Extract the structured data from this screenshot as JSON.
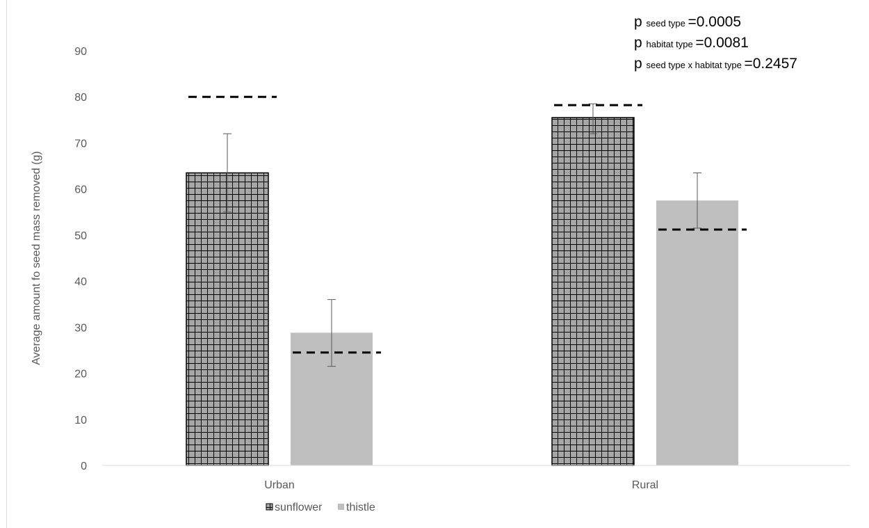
{
  "chart_data": {
    "type": "bar",
    "title": "",
    "xlabel": "",
    "ylabel": "Average  amount fo seed mass removed  (g)",
    "ylim": [
      0,
      90
    ],
    "yticks": [
      "0",
      "10",
      "20",
      "30",
      "40",
      "50",
      "60",
      "70",
      "80",
      "90"
    ],
    "categories": [
      "Urban",
      "Rural"
    ],
    "series": [
      {
        "name": "sunflower",
        "pattern": "grid-hatch",
        "fill_color": "#a6a6a6",
        "line_color": "#000000",
        "values": [
          63.5,
          75.5
        ],
        "error_low": [
          55.0,
          72.0
        ],
        "error_high": [
          72.0,
          78.5
        ],
        "reference_lines": [
          80.0,
          78.2
        ]
      },
      {
        "name": "thistle",
        "pattern": "solid",
        "fill_color": "#bfbfbf",
        "values": [
          28.8,
          57.5
        ],
        "error_low": [
          21.5,
          51.5
        ],
        "error_high": [
          36.0,
          63.5
        ],
        "reference_lines": [
          24.5,
          51.2
        ]
      }
    ],
    "legend": {
      "position": "bottom",
      "entries": [
        "sunflower",
        "thistle"
      ]
    },
    "annotations": [
      {
        "prefix": "p",
        "subscript": "seed type",
        "value": "=0.0005"
      },
      {
        "prefix": "p",
        "subscript": "habitat type",
        "value": "=0.0081"
      },
      {
        "prefix": "p",
        "subscript": "seed type x habitat type",
        "value": "=0.2457"
      }
    ],
    "grid": false
  }
}
